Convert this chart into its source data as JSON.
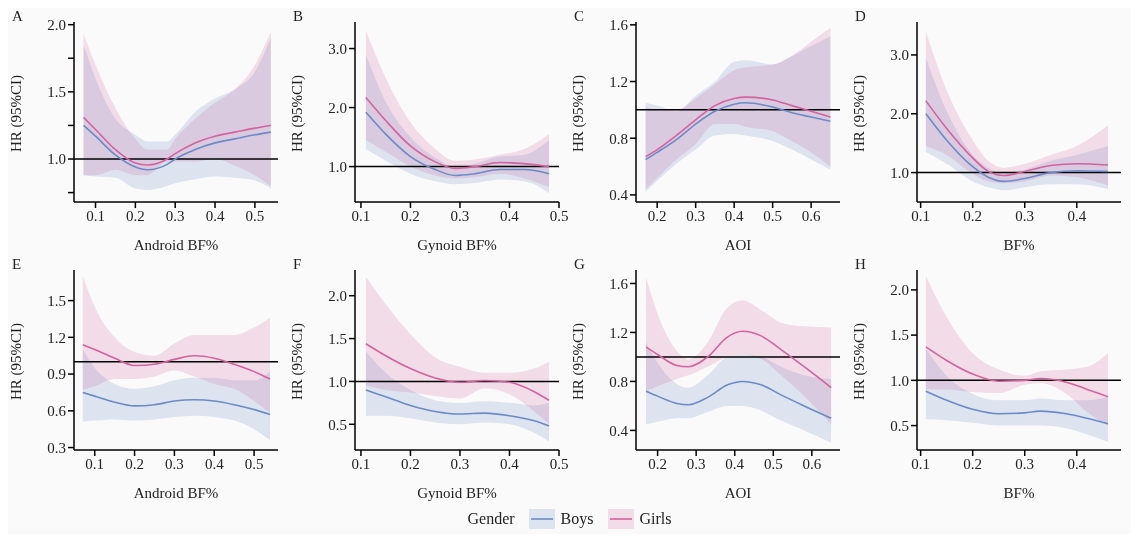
{
  "chart_data": [
    {
      "type": "line",
      "title": "A",
      "xlabel": "Android BF%",
      "ylabel": "HR (95%CI)",
      "legend_title": "Gender",
      "legend": "bottom",
      "xlim": [
        0.046,
        0.558
      ],
      "xticks": [
        0.1,
        0.2,
        0.3,
        0.4,
        0.5
      ],
      "ylim": [
        0.68,
        2.02
      ],
      "yticks": [
        {
          "value": 0.75,
          "label": null
        },
        {
          "value": 1,
          "label": "1.0"
        },
        {
          "value": 1.25,
          "label": null
        },
        1.5,
        {
          "value": 1.75,
          "label": null
        },
        {
          "value": 2,
          "label": "2.0"
        }
      ],
      "ref_lines": [
        {
          "axis": "y",
          "value": 1,
          "color": "#000000"
        }
      ],
      "x": [
        0.07,
        0.1,
        0.15,
        0.2,
        0.23,
        0.28,
        0.3,
        0.35,
        0.4,
        0.45,
        0.5,
        0.54
      ],
      "series": [
        {
          "name": "Boys",
          "color": "#6a8bc8",
          "values": [
            1.25,
            1.17,
            1.03,
            0.94,
            0.92,
            0.96,
            1.0,
            1.07,
            1.12,
            1.15,
            1.18,
            1.2
          ],
          "lower": [
            0.88,
            0.87,
            0.86,
            0.78,
            0.77,
            0.8,
            0.82,
            0.85,
            0.87,
            0.86,
            0.84,
            0.78
          ],
          "upper": [
            1.85,
            1.6,
            1.3,
            1.18,
            1.13,
            1.13,
            1.18,
            1.35,
            1.45,
            1.52,
            1.65,
            1.9
          ]
        },
        {
          "name": "Girls",
          "color": "#d462a0",
          "values": [
            1.31,
            1.22,
            1.07,
            0.97,
            0.955,
            1.0,
            1.04,
            1.12,
            1.17,
            1.2,
            1.23,
            1.25
          ],
          "lower": [
            0.88,
            0.88,
            0.92,
            0.88,
            0.88,
            0.98,
            0.98,
            0.98,
            1.0,
            0.95,
            0.88,
            0.8
          ],
          "upper": [
            1.93,
            1.7,
            1.38,
            1.15,
            1.07,
            1.07,
            1.15,
            1.3,
            1.42,
            1.52,
            1.7,
            1.95
          ]
        }
      ]
    },
    {
      "type": "line",
      "title": "B",
      "xlabel": "Gynoid BF%",
      "ylabel": "HR (95%CI)",
      "xlim": [
        0.088,
        0.5
      ],
      "xticks": [
        0.1,
        0.2,
        0.3,
        0.4,
        0.5
      ],
      "ylim": [
        0.4,
        3.45
      ],
      "yticks": [
        {
          "value": 1,
          "label": "1.0"
        },
        {
          "value": 2,
          "label": "2.0"
        },
        {
          "value": 3,
          "label": "3.0"
        }
      ],
      "ref_lines": [
        {
          "axis": "y",
          "value": 1,
          "color": "#000000"
        }
      ],
      "x": [
        0.11,
        0.15,
        0.2,
        0.25,
        0.29,
        0.33,
        0.38,
        0.43,
        0.48
      ],
      "series": [
        {
          "color": "#6a8bc8",
          "values": [
            1.92,
            1.55,
            1.17,
            0.95,
            0.85,
            0.88,
            0.95,
            0.95,
            0.88
          ],
          "lower": [
            1.3,
            1.1,
            0.88,
            0.75,
            0.7,
            0.72,
            0.78,
            0.75,
            0.55
          ],
          "upper": [
            2.9,
            2.1,
            1.5,
            1.15,
            1.0,
            1.05,
            1.17,
            1.2,
            1.45
          ]
        },
        {
          "color": "#d462a0",
          "values": [
            2.17,
            1.78,
            1.35,
            1.08,
            0.97,
            1.0,
            1.07,
            1.05,
            1.0
          ],
          "lower": [
            1.45,
            1.25,
            1.0,
            0.85,
            0.8,
            0.82,
            0.88,
            0.8,
            0.65
          ],
          "upper": [
            3.3,
            2.5,
            1.75,
            1.3,
            1.1,
            1.12,
            1.2,
            1.3,
            1.55
          ]
        }
      ]
    },
    {
      "type": "line",
      "title": "C",
      "xlabel": "AOI",
      "ylabel": "HR (95%CI)",
      "xlim": [
        0.145,
        0.675
      ],
      "xticks": [
        0.2,
        0.3,
        0.4,
        0.5,
        0.6
      ],
      "ylim": [
        0.35,
        1.62
      ],
      "yticks": [
        0.4,
        0.8,
        1.2,
        1.6
      ],
      "ref_lines": [
        {
          "axis": "y",
          "value": 1,
          "color": "#000000"
        }
      ],
      "x": [
        0.17,
        0.2,
        0.25,
        0.3,
        0.35,
        0.4,
        0.43,
        0.5,
        0.55,
        0.6,
        0.65
      ],
      "series": [
        {
          "color": "#6a8bc8",
          "values": [
            0.65,
            0.7,
            0.79,
            0.9,
            0.99,
            1.04,
            1.05,
            1.02,
            0.98,
            0.95,
            0.92
          ],
          "lower": [
            0.42,
            0.5,
            0.62,
            0.72,
            0.82,
            0.83,
            0.82,
            0.78,
            0.72,
            0.65,
            0.58
          ],
          "upper": [
            1.05,
            1.03,
            0.99,
            1.1,
            1.2,
            1.34,
            1.35,
            1.32,
            1.38,
            1.45,
            1.52
          ]
        },
        {
          "color": "#d462a0",
          "values": [
            0.67,
            0.72,
            0.82,
            0.93,
            1.03,
            1.08,
            1.09,
            1.07,
            1.03,
            0.99,
            0.95
          ],
          "lower": [
            0.44,
            0.52,
            0.65,
            0.76,
            0.9,
            0.9,
            0.88,
            0.85,
            0.78,
            0.7,
            0.6
          ],
          "upper": [
            1.02,
            1.0,
            1.0,
            1.08,
            1.18,
            1.28,
            1.3,
            1.32,
            1.38,
            1.48,
            1.58
          ]
        }
      ]
    },
    {
      "type": "line",
      "title": "D",
      "xlabel": "BF%",
      "ylabel": "HR (95%CI)",
      "xlim": [
        0.093,
        0.485
      ],
      "xticks": [
        0.1,
        0.2,
        0.3,
        0.4
      ],
      "ylim": [
        0.5,
        3.56
      ],
      "yticks": [
        {
          "value": 1,
          "label": "1.0"
        },
        {
          "value": 2,
          "label": "2.0"
        },
        {
          "value": 3,
          "label": "3.0"
        }
      ],
      "ref_lines": [
        {
          "axis": "y",
          "value": 1,
          "color": "#000000"
        }
      ],
      "x": [
        0.11,
        0.15,
        0.2,
        0.23,
        0.26,
        0.3,
        0.35,
        0.4,
        0.46
      ],
      "series": [
        {
          "color": "#6a8bc8",
          "values": [
            2.0,
            1.55,
            1.1,
            0.92,
            0.85,
            0.9,
            1.0,
            1.03,
            1.02
          ],
          "lower": [
            1.35,
            1.15,
            0.85,
            0.75,
            0.7,
            0.75,
            0.8,
            0.8,
            0.72
          ],
          "upper": [
            2.95,
            2.05,
            1.3,
            1.08,
            1.0,
            1.05,
            1.2,
            1.3,
            1.45
          ]
        },
        {
          "color": "#d462a0",
          "values": [
            2.22,
            1.75,
            1.25,
            1.02,
            0.95,
            1.02,
            1.12,
            1.15,
            1.13
          ],
          "lower": [
            1.45,
            1.3,
            0.98,
            0.85,
            0.82,
            0.85,
            0.95,
            0.92,
            0.78
          ],
          "upper": [
            3.4,
            2.4,
            1.55,
            1.2,
            1.08,
            1.15,
            1.3,
            1.45,
            1.8
          ]
        }
      ]
    },
    {
      "type": "line",
      "title": "E",
      "xlabel": "Android BF%",
      "ylabel": "HR (95%CI)",
      "xlim": [
        0.048,
        0.56
      ],
      "xticks": [
        0.1,
        0.2,
        0.3,
        0.4,
        0.5
      ],
      "ylim": [
        0.28,
        1.75
      ],
      "yticks": [
        0.3,
        0.6,
        0.9,
        1.2,
        1.5
      ],
      "ref_lines": [
        {
          "axis": "y",
          "value": 1,
          "color": "#000000"
        }
      ],
      "x": [
        0.07,
        0.1,
        0.15,
        0.2,
        0.25,
        0.3,
        0.35,
        0.4,
        0.45,
        0.5,
        0.54
      ],
      "series": [
        {
          "color": "#6a8bc8",
          "values": [
            0.75,
            0.72,
            0.67,
            0.64,
            0.65,
            0.68,
            0.69,
            0.68,
            0.65,
            0.61,
            0.57
          ],
          "lower": [
            0.51,
            0.52,
            0.53,
            0.52,
            0.53,
            0.55,
            0.56,
            0.55,
            0.52,
            0.45,
            0.36
          ],
          "upper": [
            1.1,
            0.95,
            0.82,
            0.78,
            0.8,
            0.85,
            0.87,
            0.87,
            0.85,
            0.85,
            0.92
          ]
        },
        {
          "color": "#d462a0",
          "values": [
            1.14,
            1.1,
            1.03,
            0.97,
            0.98,
            1.02,
            1.05,
            1.03,
            0.98,
            0.92,
            0.86
          ],
          "lower": [
            0.77,
            0.8,
            0.86,
            0.86,
            0.88,
            0.93,
            0.88,
            0.82,
            0.78,
            0.68,
            0.58
          ],
          "upper": [
            1.7,
            1.45,
            1.2,
            1.08,
            1.05,
            1.15,
            1.22,
            1.22,
            1.22,
            1.28,
            1.36
          ]
        }
      ]
    },
    {
      "type": "line",
      "title": "F",
      "xlabel": "Gynoid BF%",
      "ylabel": "HR (95%CI)",
      "xlim": [
        0.088,
        0.5
      ],
      "xticks": [
        0.1,
        0.2,
        0.3,
        0.4,
        0.5
      ],
      "ylim": [
        0.2,
        2.3
      ],
      "yticks": [
        0.5,
        {
          "value": 1,
          "label": "1.0"
        },
        1.5,
        {
          "value": 2,
          "label": "2.0"
        }
      ],
      "ref_lines": [
        {
          "axis": "y",
          "value": 1,
          "color": "#000000"
        }
      ],
      "x": [
        0.11,
        0.15,
        0.2,
        0.25,
        0.3,
        0.35,
        0.4,
        0.45,
        0.48
      ],
      "series": [
        {
          "color": "#6a8bc8",
          "values": [
            0.9,
            0.82,
            0.72,
            0.65,
            0.62,
            0.63,
            0.6,
            0.54,
            0.48
          ],
          "lower": [
            0.6,
            0.6,
            0.57,
            0.52,
            0.5,
            0.52,
            0.5,
            0.4,
            0.3
          ],
          "upper": [
            1.35,
            1.1,
            0.9,
            0.78,
            0.75,
            0.77,
            0.75,
            0.72,
            0.75
          ]
        },
        {
          "color": "#d462a0",
          "values": [
            1.44,
            1.3,
            1.15,
            1.04,
            0.99,
            1.01,
            0.99,
            0.88,
            0.78
          ],
          "lower": [
            0.95,
            0.9,
            0.87,
            0.83,
            0.8,
            0.92,
            0.85,
            0.65,
            0.5
          ],
          "upper": [
            2.22,
            1.9,
            1.55,
            1.28,
            1.17,
            1.1,
            1.1,
            1.15,
            1.23
          ]
        }
      ]
    },
    {
      "type": "line",
      "title": "G",
      "xlabel": "AOI",
      "ylabel": "HR (95%CI)",
      "xlim": [
        0.144,
        0.673
      ],
      "xticks": [
        0.2,
        0.3,
        0.4,
        0.5,
        0.6
      ],
      "ylim": [
        0.24,
        1.71
      ],
      "yticks": [
        0.4,
        0.8,
        1.2,
        1.6
      ],
      "ref_lines": [
        {
          "axis": "y",
          "value": 1,
          "color": "#000000"
        }
      ],
      "x": [
        0.17,
        0.2,
        0.25,
        0.28,
        0.33,
        0.38,
        0.42,
        0.47,
        0.52,
        0.58,
        0.65
      ],
      "series": [
        {
          "color": "#6a8bc8",
          "values": [
            0.72,
            0.68,
            0.62,
            0.61,
            0.67,
            0.77,
            0.8,
            0.77,
            0.69,
            0.6,
            0.5
          ],
          "lower": [
            0.45,
            0.47,
            0.5,
            0.5,
            0.55,
            0.6,
            0.6,
            0.56,
            0.48,
            0.4,
            0.3
          ],
          "upper": [
            1.12,
            0.95,
            0.78,
            0.75,
            0.85,
            1.0,
            1.02,
            1.0,
            0.92,
            0.85,
            0.82
          ]
        },
        {
          "color": "#d462a0",
          "values": [
            1.08,
            1.02,
            0.93,
            0.92,
            1.0,
            1.16,
            1.21,
            1.17,
            1.06,
            0.92,
            0.75
          ],
          "lower": [
            0.72,
            0.76,
            0.82,
            0.85,
            0.92,
            1.0,
            1.02,
            0.98,
            0.85,
            0.68,
            0.45
          ],
          "upper": [
            1.65,
            1.35,
            1.05,
            0.98,
            1.12,
            1.4,
            1.46,
            1.38,
            1.28,
            1.25,
            1.24
          ]
        }
      ]
    },
    {
      "type": "line",
      "title": "H",
      "xlabel": "BF%",
      "ylabel": "HR (95%CI)",
      "xlim": [
        0.093,
        0.485
      ],
      "xticks": [
        0.1,
        0.2,
        0.3,
        0.4
      ],
      "ylim": [
        0.23,
        2.22
      ],
      "yticks": [
        0.5,
        {
          "value": 1,
          "label": "1.0"
        },
        1.5,
        {
          "value": 2,
          "label": "2.0"
        }
      ],
      "ref_lines": [
        {
          "axis": "y",
          "value": 1,
          "color": "#000000"
        }
      ],
      "x": [
        0.11,
        0.15,
        0.2,
        0.25,
        0.3,
        0.33,
        0.38,
        0.42,
        0.46
      ],
      "series": [
        {
          "color": "#6a8bc8",
          "values": [
            0.88,
            0.78,
            0.68,
            0.63,
            0.64,
            0.66,
            0.63,
            0.58,
            0.52
          ],
          "lower": [
            0.57,
            0.56,
            0.53,
            0.5,
            0.5,
            0.5,
            0.47,
            0.4,
            0.32
          ],
          "upper": [
            1.35,
            1.05,
            0.85,
            0.78,
            0.78,
            0.8,
            0.78,
            0.78,
            0.82
          ]
        },
        {
          "color": "#d462a0",
          "values": [
            1.37,
            1.22,
            1.07,
            0.99,
            1.0,
            1.02,
            0.98,
            0.9,
            0.82
          ],
          "lower": [
            0.9,
            0.9,
            0.87,
            0.86,
            0.95,
            0.97,
            0.85,
            0.65,
            0.5
          ],
          "upper": [
            2.15,
            1.7,
            1.3,
            1.12,
            1.05,
            1.1,
            1.12,
            1.15,
            1.3
          ]
        }
      ]
    }
  ]
}
